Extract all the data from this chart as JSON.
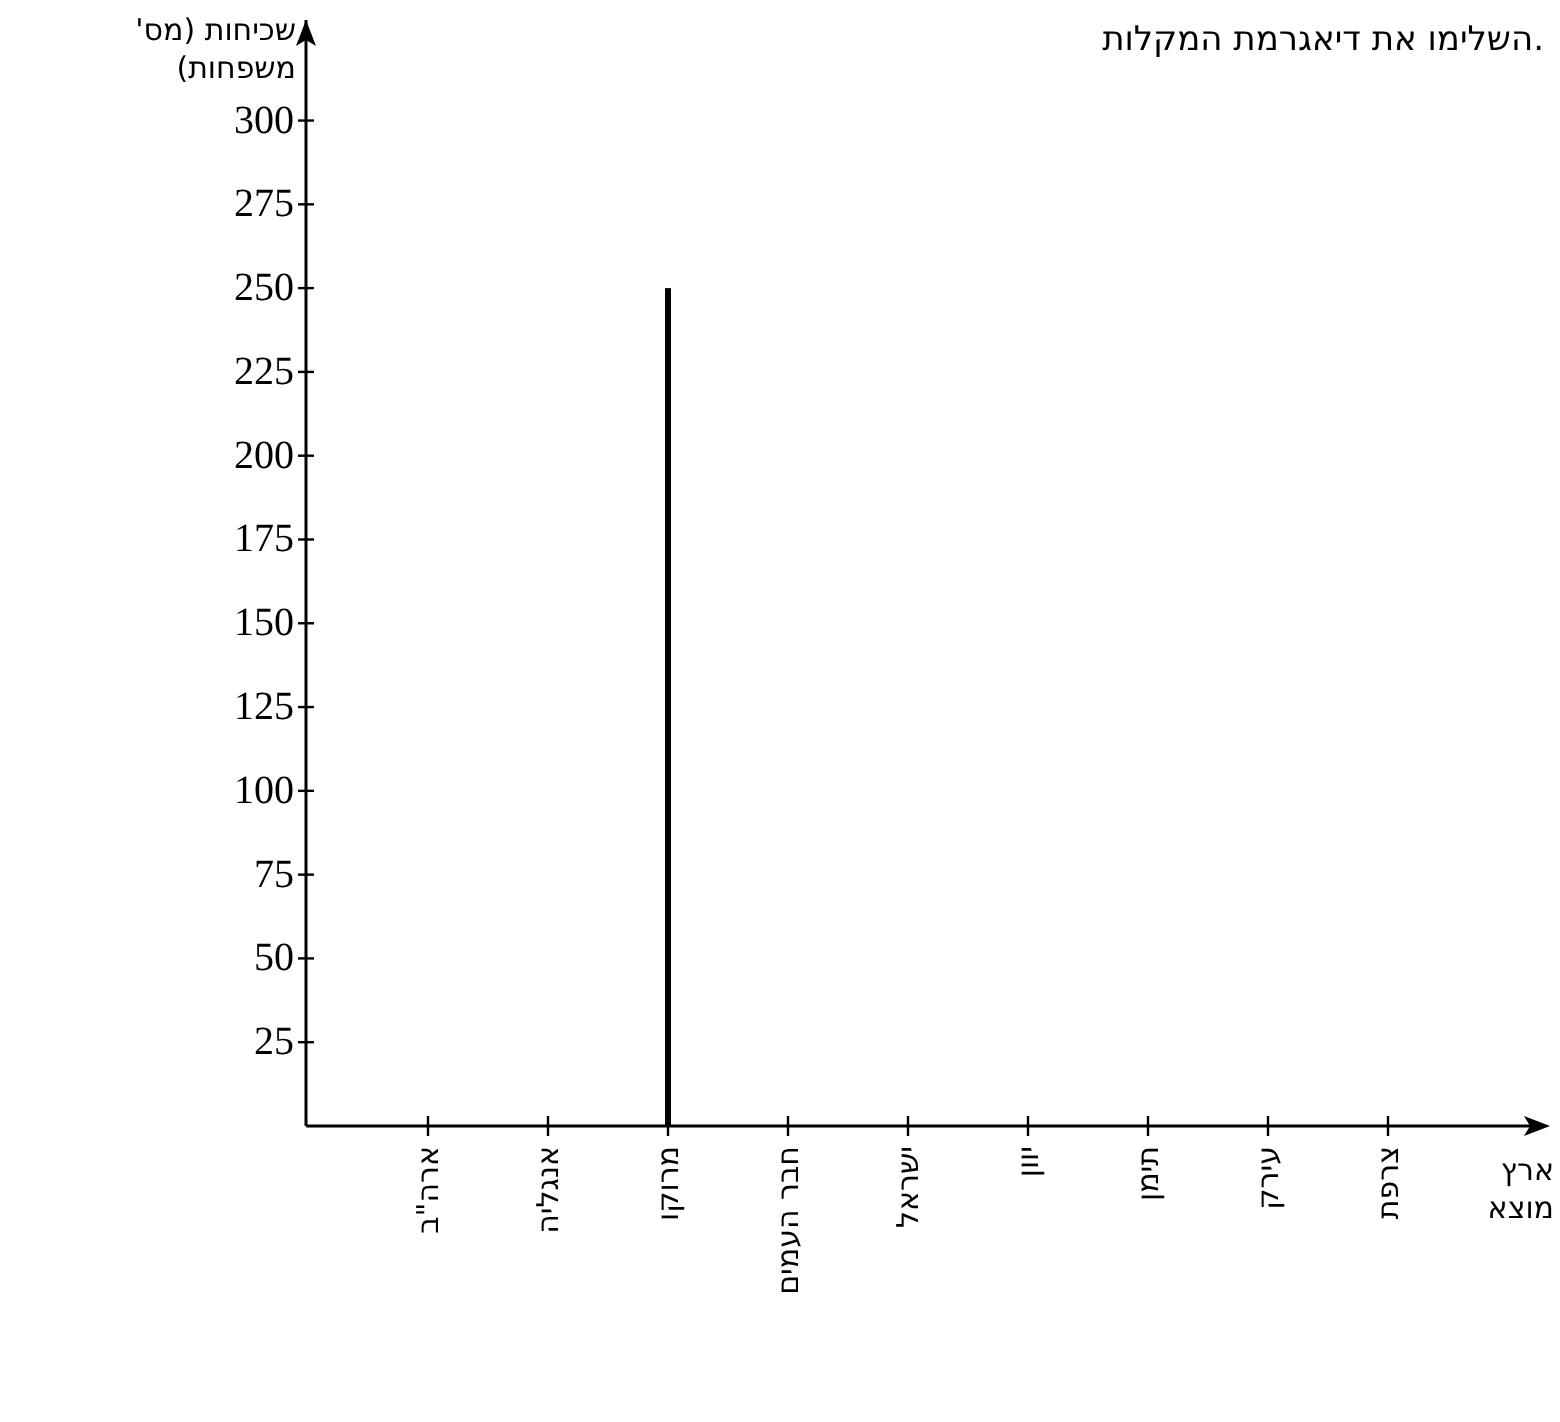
{
  "chart_data": {
    "type": "bar",
    "title": "השלימו את דיאגרמת המקלות.",
    "xlabel": "ארץ מוצא",
    "ylabel": "שכיחות (מס' משפחות)",
    "categories": [
      "ארה\"ב",
      "אנגליה",
      "מרוקו",
      "חבר העמים",
      "ישראל",
      "יוון",
      "תימן",
      "עירק",
      "צרפת"
    ],
    "values": [
      null,
      null,
      250,
      null,
      null,
      null,
      null,
      null,
      null
    ],
    "color": "#000000",
    "ylim": [
      0,
      330
    ],
    "yticks": [
      25,
      50,
      75,
      100,
      125,
      150,
      175,
      200,
      225,
      250,
      275,
      300
    ],
    "grid": false
  }
}
